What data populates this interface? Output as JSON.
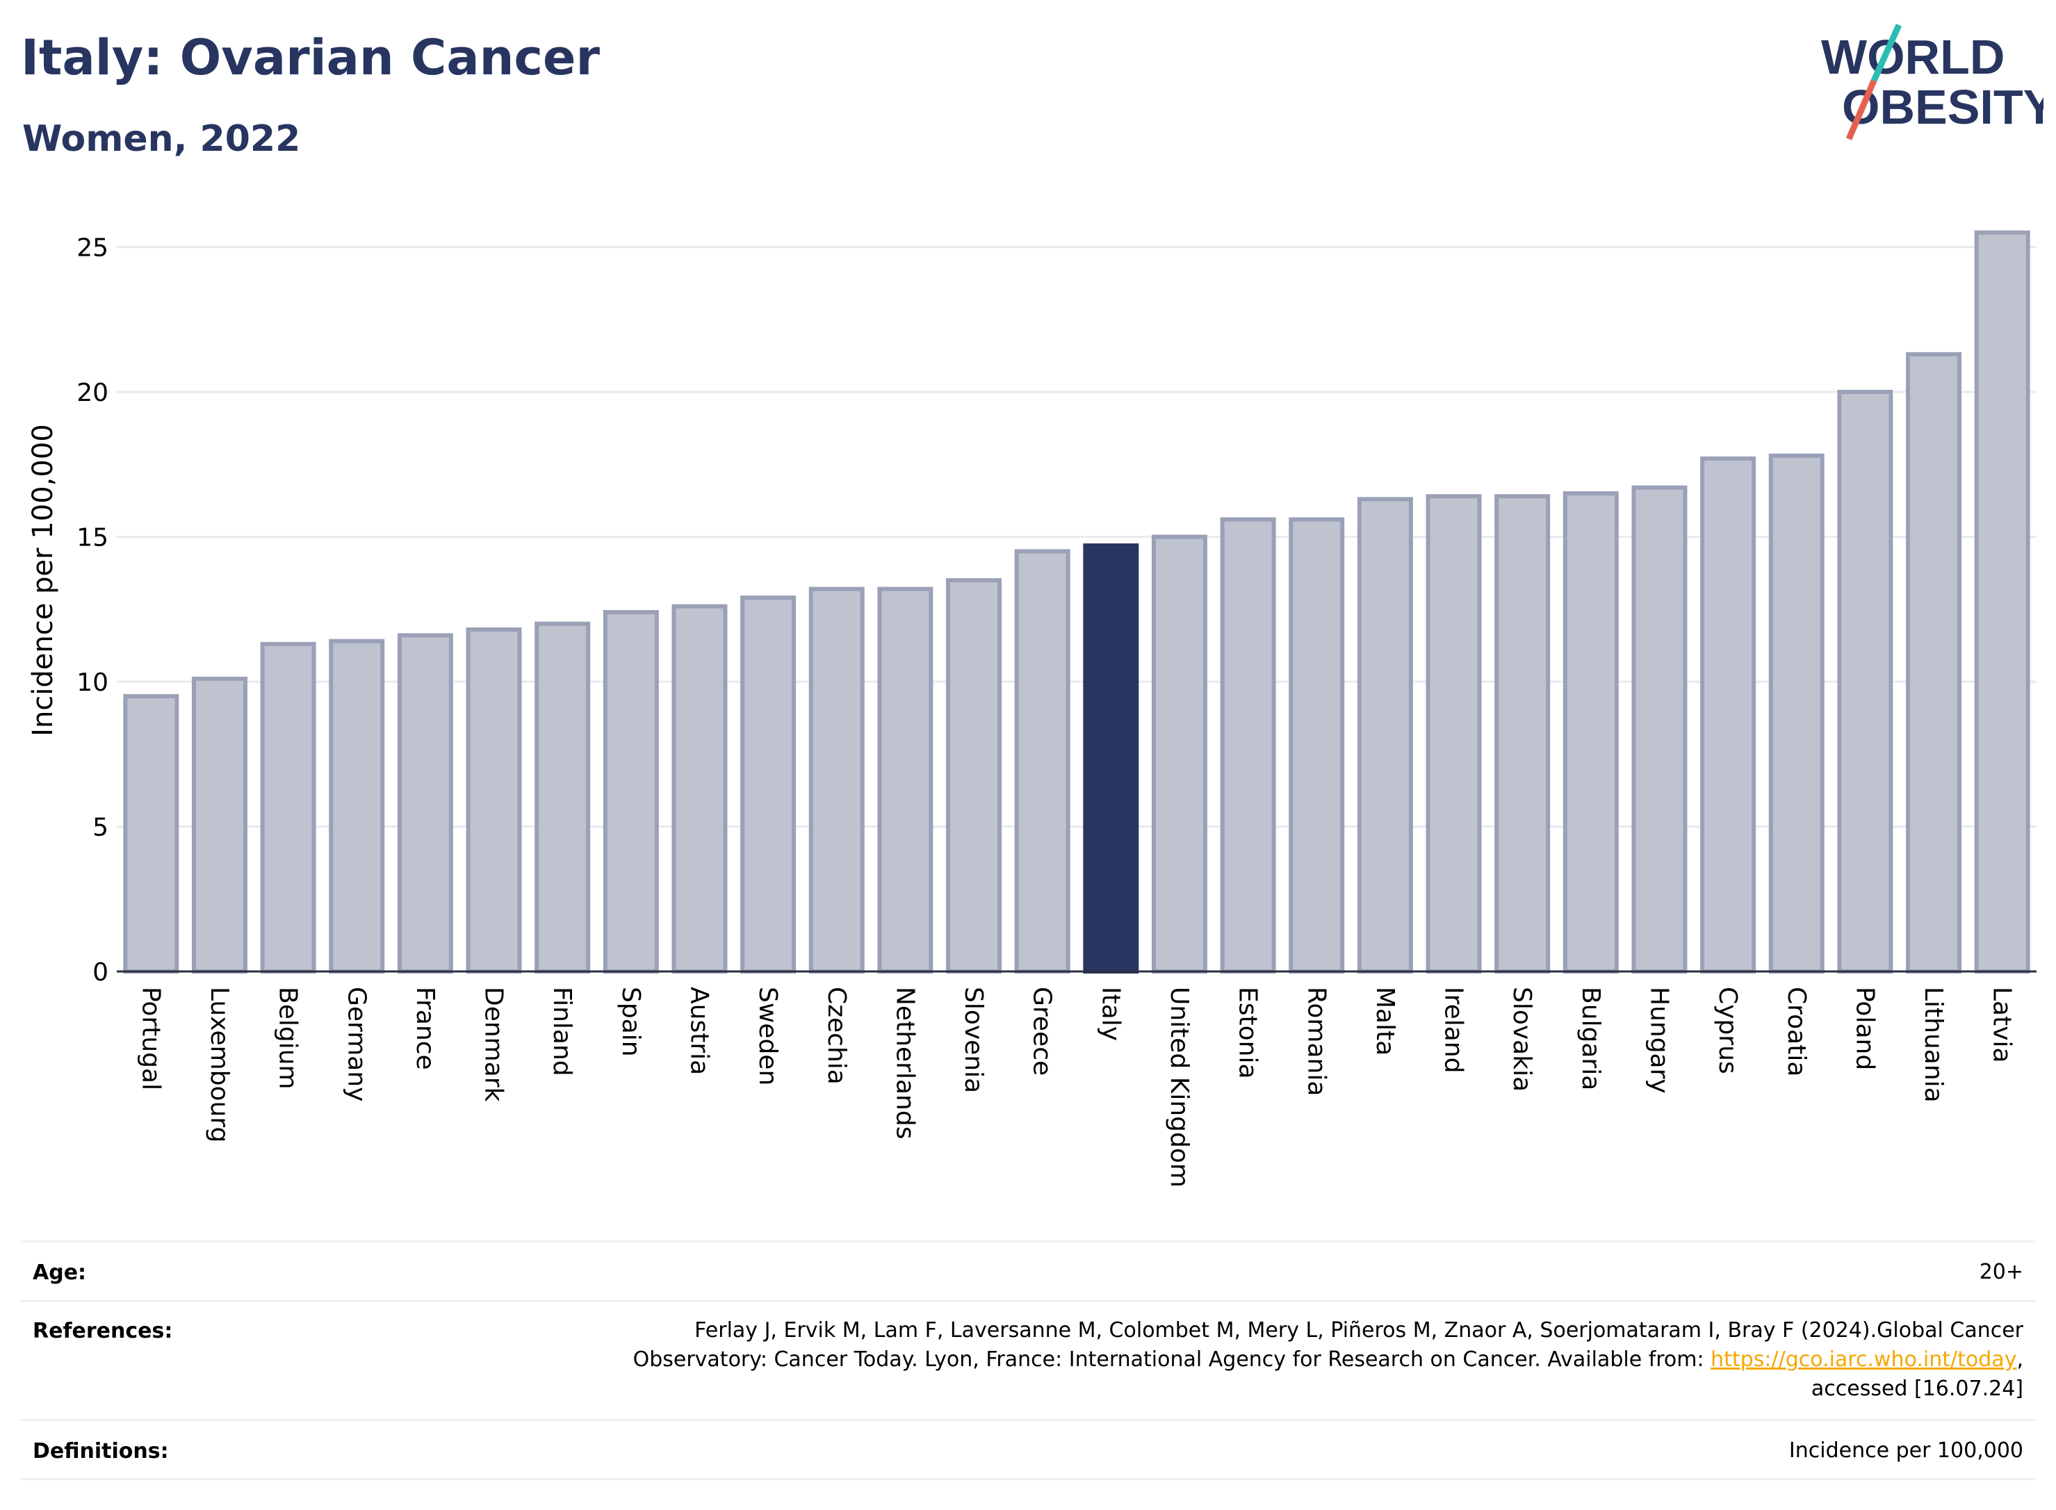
{
  "header": {
    "title": "Italy: Ovarian Cancer",
    "subtitle": "Women, 2022"
  },
  "logo": {
    "line1": "WORLD",
    "line2": "OBESITY",
    "text_color": "#283560",
    "slash_colors": [
      "#2bbcb3",
      "#e5604f"
    ]
  },
  "chart_data": {
    "type": "bar",
    "categories": [
      "Portugal",
      "Luxembourg",
      "Belgium",
      "Germany",
      "France",
      "Denmark",
      "Finland",
      "Spain",
      "Austria",
      "Sweden",
      "Czechia",
      "Netherlands",
      "Slovenia",
      "Greece",
      "Italy",
      "United Kingdom",
      "Estonia",
      "Romania",
      "Malta",
      "Ireland",
      "Slovakia",
      "Bulgaria",
      "Hungary",
      "Cyprus",
      "Croatia",
      "Poland",
      "Lithuania",
      "Latvia"
    ],
    "values": [
      9.5,
      10.1,
      11.3,
      11.4,
      11.6,
      11.8,
      12.0,
      12.4,
      12.6,
      12.9,
      13.2,
      13.2,
      13.5,
      14.5,
      14.7,
      15.0,
      15.6,
      15.6,
      16.3,
      16.4,
      16.4,
      16.5,
      16.7,
      17.7,
      17.8,
      20.0,
      21.3,
      25.5
    ],
    "highlight": "Italy",
    "title": "Italy: Ovarian Cancer",
    "subtitle": "Women, 2022",
    "xlabel": "",
    "ylabel": "Incidence per 100,000",
    "ylim": [
      0,
      27
    ],
    "yticks": [
      0,
      5,
      10,
      15,
      20,
      25
    ],
    "grid": true,
    "colors": {
      "bar": "#bfc3d0",
      "bar_edge": "#9aa0b6",
      "highlight": "#283560"
    }
  },
  "info": {
    "age_label": "Age:",
    "age_value": "20+",
    "references_label": "References:",
    "references_text_1": "Ferlay J, Ervik M, Lam F, Laversanne M, Colombet M, Mery L, Piñeros M, Znaor A, Soerjomataram I, Bray F (2024).Global Cancer",
    "references_text_2": "Observatory: Cancer Today. Lyon, France: International Agency for Research on Cancer. Available from: ",
    "references_link": "https://gco.iarc.who.int/today",
    "references_text_3": ",",
    "references_text_4": "accessed [16.07.24]",
    "definitions_label": "Definitions:",
    "definitions_value": "Incidence per 100,000"
  }
}
